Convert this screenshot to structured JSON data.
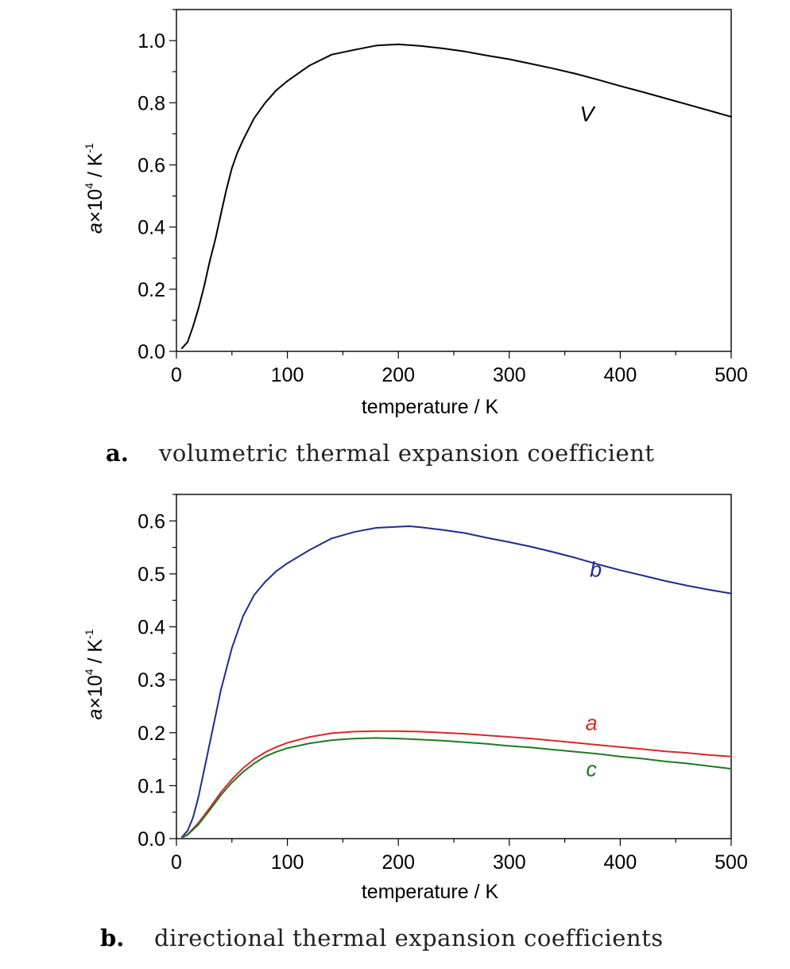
{
  "chart_data": [
    {
      "type": "line",
      "caption_letter": "a.",
      "caption": "volumetric thermal expansion coefficient",
      "xlabel": "temperature / K",
      "ylabel": {
        "base": "a×10",
        "sup1": "4",
        "unit": " / K",
        "sup2": "-1"
      },
      "xlim": [
        0,
        500
      ],
      "ylim": [
        0,
        1.1
      ],
      "xticks": [
        0,
        100,
        200,
        300,
        400,
        500
      ],
      "yticks": [
        0.0,
        0.2,
        0.4,
        0.6,
        0.8,
        1.0
      ],
      "xtick_labels": [
        "0",
        "100",
        "200",
        "300",
        "400",
        "500"
      ],
      "ytick_labels": [
        "0.0",
        "0.2",
        "0.4",
        "0.6",
        "0.8",
        "1.0"
      ],
      "grid": false,
      "series": [
        {
          "name": "V",
          "color": "#000000",
          "label_at": [
            370,
            0.74
          ],
          "x": [
            5,
            10,
            15,
            20,
            25,
            30,
            35,
            40,
            45,
            50,
            55,
            60,
            70,
            80,
            90,
            100,
            120,
            140,
            160,
            180,
            200,
            220,
            240,
            260,
            280,
            300,
            320,
            340,
            360,
            380,
            400,
            420,
            440,
            460,
            480,
            500
          ],
          "y": [
            0.01,
            0.03,
            0.08,
            0.14,
            0.21,
            0.29,
            0.36,
            0.44,
            0.52,
            0.59,
            0.64,
            0.68,
            0.75,
            0.8,
            0.84,
            0.87,
            0.92,
            0.955,
            0.97,
            0.984,
            0.988,
            0.983,
            0.975,
            0.965,
            0.952,
            0.94,
            0.925,
            0.91,
            0.893,
            0.874,
            0.854,
            0.835,
            0.815,
            0.795,
            0.775,
            0.755
          ]
        }
      ]
    },
    {
      "type": "line",
      "caption_letter": "b.",
      "caption": "directional thermal expansion coefficients",
      "xlabel": "temperature / K",
      "ylabel": {
        "base": "a×10",
        "sup1": "4",
        "unit": " / K",
        "sup2": "-1"
      },
      "xlim": [
        0,
        500
      ],
      "ylim": [
        0,
        0.65
      ],
      "xticks": [
        0,
        100,
        200,
        300,
        400,
        500
      ],
      "yticks": [
        0.0,
        0.1,
        0.2,
        0.3,
        0.4,
        0.5,
        0.6
      ],
      "xtick_labels": [
        "0",
        "100",
        "200",
        "300",
        "400",
        "500"
      ],
      "ytick_labels": [
        "0.0",
        "0.1",
        "0.2",
        "0.3",
        "0.4",
        "0.5",
        "0.6"
      ],
      "grid": false,
      "series": [
        {
          "name": "b",
          "color": "#1f2b8f",
          "label_at": [
            378,
            0.495
          ],
          "x": [
            5,
            10,
            15,
            20,
            25,
            30,
            35,
            40,
            45,
            50,
            60,
            70,
            80,
            90,
            100,
            120,
            140,
            160,
            180,
            200,
            210,
            220,
            240,
            260,
            280,
            300,
            320,
            340,
            360,
            380,
            400,
            420,
            440,
            460,
            480,
            500
          ],
          "y": [
            0.003,
            0.015,
            0.04,
            0.08,
            0.13,
            0.18,
            0.23,
            0.28,
            0.32,
            0.36,
            0.42,
            0.46,
            0.485,
            0.505,
            0.52,
            0.545,
            0.567,
            0.579,
            0.587,
            0.589,
            0.59,
            0.588,
            0.583,
            0.577,
            0.568,
            0.56,
            0.551,
            0.541,
            0.53,
            0.518,
            0.507,
            0.497,
            0.487,
            0.478,
            0.47,
            0.463
          ]
        },
        {
          "name": "a",
          "color": "#d42a2a",
          "label_at": [
            374,
            0.205
          ],
          "x": [
            5,
            10,
            20,
            30,
            40,
            50,
            60,
            70,
            80,
            90,
            100,
            120,
            140,
            160,
            180,
            200,
            220,
            240,
            260,
            280,
            300,
            320,
            340,
            360,
            380,
            400,
            420,
            440,
            460,
            480,
            500
          ],
          "y": [
            0.002,
            0.008,
            0.03,
            0.058,
            0.087,
            0.112,
            0.133,
            0.15,
            0.163,
            0.173,
            0.181,
            0.192,
            0.199,
            0.202,
            0.203,
            0.203,
            0.202,
            0.2,
            0.198,
            0.195,
            0.192,
            0.189,
            0.185,
            0.181,
            0.177,
            0.173,
            0.169,
            0.165,
            0.162,
            0.158,
            0.155
          ]
        },
        {
          "name": "c",
          "color": "#1f7a22",
          "label_at": [
            374,
            0.118
          ],
          "x": [
            5,
            10,
            20,
            30,
            40,
            50,
            60,
            70,
            80,
            90,
            100,
            120,
            140,
            160,
            180,
            200,
            220,
            240,
            260,
            280,
            300,
            320,
            340,
            360,
            380,
            400,
            420,
            440,
            460,
            480,
            500
          ],
          "y": [
            0.002,
            0.007,
            0.027,
            0.054,
            0.082,
            0.106,
            0.126,
            0.142,
            0.155,
            0.164,
            0.171,
            0.18,
            0.186,
            0.189,
            0.19,
            0.189,
            0.187,
            0.185,
            0.182,
            0.179,
            0.175,
            0.172,
            0.168,
            0.164,
            0.16,
            0.155,
            0.151,
            0.146,
            0.142,
            0.137,
            0.132
          ]
        }
      ]
    }
  ]
}
